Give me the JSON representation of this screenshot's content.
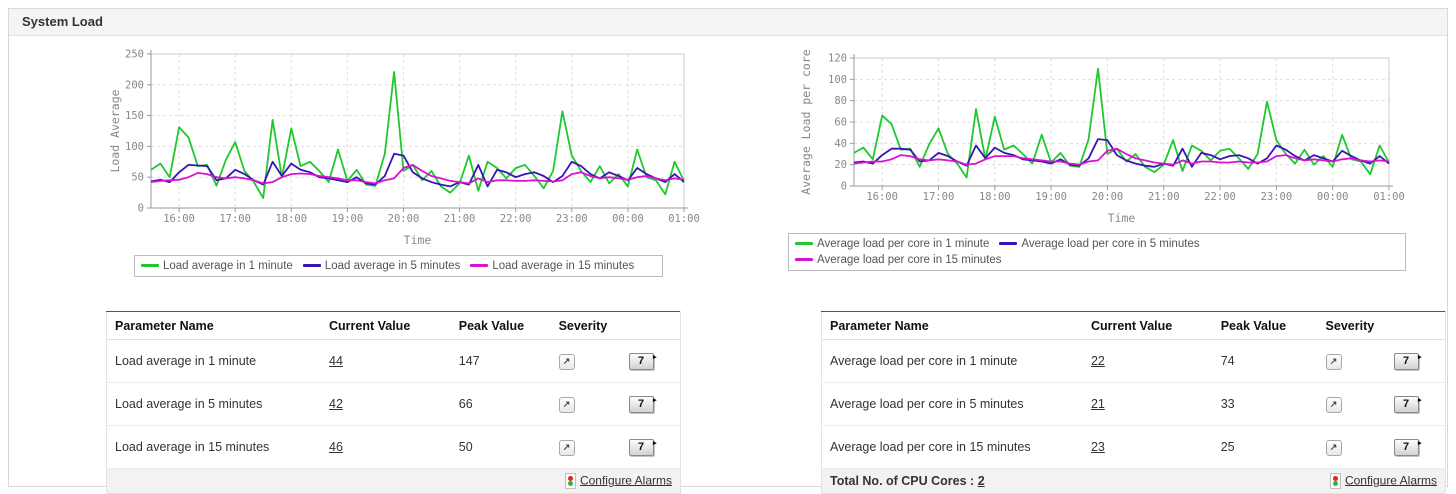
{
  "panel": {
    "title": "System Load"
  },
  "chart_data": [
    {
      "type": "line",
      "title": "",
      "xlabel": "Time",
      "ylabel": "Load Average",
      "ylim": [
        0,
        250
      ],
      "yticks": [
        0,
        50,
        100,
        150,
        200,
        250
      ],
      "x_start": "15:30",
      "x_step_minutes": 10,
      "xticklabels": [
        "16:00",
        "17:00",
        "18:00",
        "19:00",
        "20:00",
        "21:00",
        "22:00",
        "23:00",
        "00:00",
        "01:00"
      ],
      "xtick_indices": [
        3,
        9,
        15,
        21,
        27,
        33,
        39,
        45,
        51,
        57
      ],
      "grid": true,
      "legend_position": "bottom",
      "legend_rows": [
        [
          0,
          1,
          2
        ]
      ],
      "series": [
        {
          "name": "Load average in 1 minute",
          "color": "#1ec82e",
          "values": [
            62,
            72,
            50,
            131,
            115,
            68,
            70,
            36,
            78,
            107,
            60,
            42,
            16,
            143,
            50,
            129,
            68,
            75,
            60,
            42,
            95,
            44,
            62,
            38,
            36,
            88,
            221,
            60,
            70,
            45,
            60,
            35,
            25,
            40,
            85,
            28,
            75,
            65,
            48,
            65,
            70,
            52,
            32,
            60,
            157,
            85,
            60,
            42,
            68,
            40,
            55,
            35,
            95,
            50,
            45,
            22,
            75,
            44
          ]
        },
        {
          "name": "Load average in 5 minutes",
          "color": "#3a13b8",
          "values": [
            43,
            46,
            42,
            58,
            70,
            69,
            68,
            45,
            48,
            62,
            55,
            45,
            38,
            75,
            52,
            72,
            62,
            58,
            50,
            48,
            45,
            42,
            50,
            40,
            38,
            52,
            88,
            85,
            58,
            48,
            42,
            38,
            35,
            42,
            38,
            70,
            35,
            62,
            58,
            50,
            55,
            58,
            52,
            42,
            52,
            75,
            68,
            55,
            48,
            58,
            52,
            45,
            65,
            55,
            48,
            42,
            55,
            42
          ]
        },
        {
          "name": "Load average in 15 minutes",
          "color": "#d813cf",
          "values": [
            42,
            44,
            45,
            46,
            50,
            57,
            55,
            50,
            48,
            50,
            48,
            45,
            40,
            42,
            50,
            55,
            56,
            55,
            52,
            50,
            48,
            45,
            45,
            42,
            40,
            45,
            48,
            65,
            70,
            60,
            52,
            48,
            44,
            42,
            40,
            48,
            42,
            45,
            45,
            44,
            44,
            45,
            44,
            43,
            45,
            55,
            58,
            52,
            48,
            50,
            48,
            46,
            50,
            52,
            48,
            45,
            48,
            46
          ]
        }
      ]
    },
    {
      "type": "line",
      "title": "",
      "xlabel": "Time",
      "ylabel": "Average Load per core",
      "ylim": [
        0,
        120
      ],
      "yticks": [
        0,
        20,
        40,
        60,
        80,
        100,
        120
      ],
      "x_start": "15:30",
      "x_step_minutes": 10,
      "xticklabels": [
        "16:00",
        "17:00",
        "18:00",
        "19:00",
        "20:00",
        "21:00",
        "22:00",
        "23:00",
        "00:00",
        "01:00"
      ],
      "xtick_indices": [
        3,
        9,
        15,
        21,
        27,
        33,
        39,
        45,
        51,
        57
      ],
      "grid": true,
      "legend_position": "bottom",
      "legend_rows": [
        [
          0,
          1
        ],
        [
          2
        ]
      ],
      "series": [
        {
          "name": "Average load per core in 1 minute",
          "color": "#1ec82e",
          "values": [
            31,
            36,
            25,
            66,
            58,
            34,
            35,
            18,
            39,
            54,
            30,
            21,
            8,
            72,
            25,
            65,
            34,
            38,
            30,
            21,
            48,
            22,
            31,
            19,
            18,
            44,
            110,
            30,
            35,
            23,
            30,
            18,
            13,
            20,
            43,
            14,
            38,
            33,
            24,
            33,
            35,
            26,
            16,
            30,
            79,
            43,
            30,
            21,
            34,
            20,
            28,
            18,
            48,
            25,
            23,
            11,
            38,
            22
          ]
        },
        {
          "name": "Average load per core in 5 minutes",
          "color": "#3a13b8",
          "values": [
            22,
            23,
            21,
            29,
            35,
            35,
            34,
            23,
            24,
            31,
            28,
            23,
            19,
            38,
            26,
            36,
            31,
            29,
            25,
            24,
            23,
            21,
            25,
            20,
            19,
            26,
            44,
            43,
            29,
            24,
            21,
            19,
            18,
            21,
            19,
            35,
            18,
            31,
            29,
            25,
            28,
            29,
            26,
            21,
            26,
            38,
            34,
            28,
            24,
            29,
            26,
            23,
            33,
            28,
            24,
            21,
            28,
            21
          ]
        },
        {
          "name": "Average load per core in 15 minutes",
          "color": "#d813cf",
          "values": [
            21,
            22,
            23,
            23,
            25,
            29,
            28,
            25,
            24,
            25,
            24,
            23,
            20,
            21,
            25,
            28,
            28,
            28,
            26,
            25,
            24,
            23,
            23,
            21,
            20,
            23,
            24,
            33,
            35,
            30,
            26,
            24,
            22,
            21,
            20,
            24,
            21,
            23,
            23,
            22,
            22,
            23,
            22,
            22,
            23,
            28,
            29,
            26,
            24,
            25,
            24,
            23,
            25,
            26,
            24,
            23,
            24,
            23
          ]
        }
      ]
    }
  ],
  "tables": {
    "left": {
      "headers": [
        "Parameter Name",
        "Current Value",
        "Peak Value",
        "Severity"
      ],
      "rows": [
        {
          "param": "Load average in 1 minute",
          "current": "44",
          "peak": "147"
        },
        {
          "param": "Load average in 5 minutes",
          "current": "42",
          "peak": "66"
        },
        {
          "param": "Load average in 15 minutes",
          "current": "46",
          "peak": "50"
        }
      ],
      "footer": {
        "configure_alarms": "Configure Alarms"
      }
    },
    "right": {
      "headers": [
        "Parameter Name",
        "Current Value",
        "Peak Value",
        "Severity"
      ],
      "rows": [
        {
          "param": "Average load per core in 1 minute",
          "current": "22",
          "peak": "74"
        },
        {
          "param": "Average load per core in 5 minutes",
          "current": "21",
          "peak": "33"
        },
        {
          "param": "Average load per core in 15 minutes",
          "current": "23",
          "peak": "25"
        }
      ],
      "footer": {
        "total_label": "Total No. of CPU Cores :",
        "total_value": "2",
        "configure_alarms": "Configure Alarms"
      }
    }
  },
  "icons": {
    "severity_glyph": "↗",
    "history_button_label": "7",
    "history_button_corner": "▸"
  },
  "colors": {
    "series_green": "#1ec82e",
    "series_blue": "#3a13b8",
    "series_magenta": "#d813cf",
    "grid": "#dddddd",
    "axis": "#999999",
    "tick_text": "#888888"
  }
}
